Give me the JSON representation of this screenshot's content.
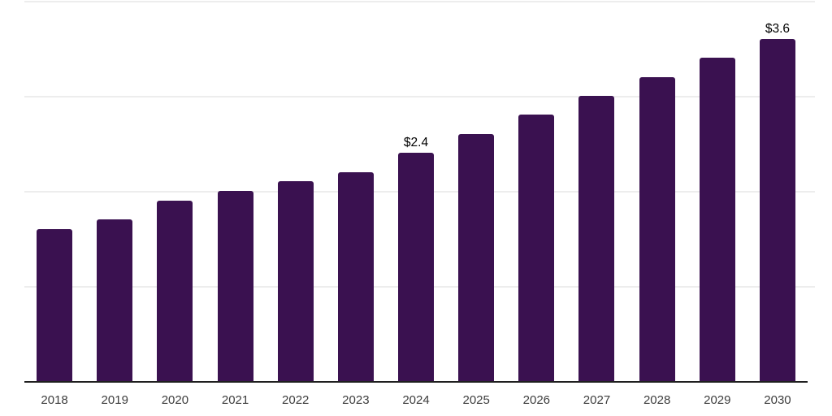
{
  "chart_data": {
    "type": "bar",
    "title": "",
    "xlabel": "",
    "ylabel": "",
    "categories": [
      "2018",
      "2019",
      "2020",
      "2021",
      "2022",
      "2023",
      "2024",
      "2025",
      "2026",
      "2027",
      "2028",
      "2029",
      "2030"
    ],
    "values": [
      1.6,
      1.7,
      1.9,
      2.0,
      2.1,
      2.2,
      2.4,
      2.6,
      2.8,
      3.0,
      3.2,
      3.4,
      3.6
    ],
    "data_labels": {
      "2024": "$2.4",
      "2030": "$3.6"
    },
    "ylim": [
      0,
      4
    ],
    "gridline_values": [
      1,
      2,
      3,
      4
    ],
    "grid": true,
    "legend_position": "none",
    "bar_color": "#3A1150",
    "gridline_color": "#EDEDED",
    "axis_line_color": "#1F1F1F",
    "tick_label_color": "#3D3D3D",
    "data_label_color": "#000000"
  }
}
